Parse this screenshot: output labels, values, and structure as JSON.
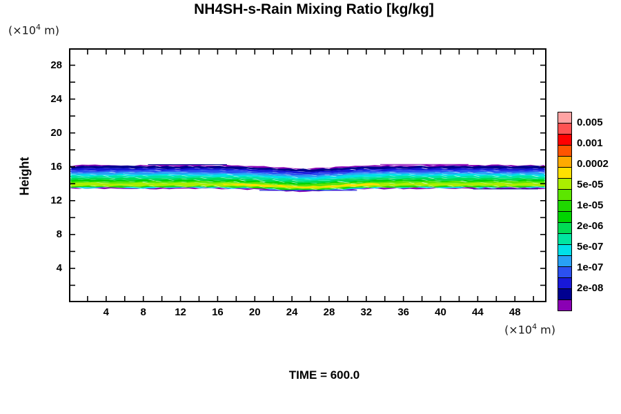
{
  "title": "NH4SH-s-Rain Mixing Ratio [kg/kg]",
  "y_axis_title": "Height",
  "time_label": "TIME = 600.0",
  "y_unit": {
    "pre": "(×10",
    "sup": "4",
    "post": " m)"
  },
  "x_unit": {
    "pre": "(×10",
    "sup": "4",
    "post": " m)"
  },
  "chart_data": {
    "type": "filled_contour",
    "title": "NH4SH-s-Rain Mixing Ratio [kg/kg]",
    "xlabel": "(x10^4 m)",
    "ylabel": "Height (x10^4 m)",
    "x_range": [
      0,
      51.4
    ],
    "y_range": [
      0,
      30
    ],
    "x_ticks_step": 2,
    "y_ticks_step": 2,
    "x_tick_labels": [
      4,
      8,
      12,
      16,
      20,
      24,
      28,
      32,
      36,
      40,
      44,
      48
    ],
    "y_tick_labels": [
      4,
      8,
      12,
      16,
      20,
      24,
      28
    ],
    "time": 600.0,
    "colorbar": {
      "labels": [
        "0.005",
        "0.001",
        "0.0002",
        "5e-05",
        "1e-05",
        "2e-06",
        "5e-07",
        "1e-07",
        "2e-08"
      ],
      "colors": [
        "#FFA3A3",
        "#FF5252",
        "#FF0000",
        "#FF5500",
        "#FFAA00",
        "#FFE000",
        "#AAEE00",
        "#5CE600",
        "#1FD800",
        "#00D400",
        "#00DC55",
        "#00E5A0",
        "#00E0E8",
        "#28A0F5",
        "#2B50F0",
        "#1818D8",
        "#000090",
        "#8A00B4"
      ]
    },
    "band": {
      "description": "Horizontal rain-mixing-ratio band between heights ~13.4 and ~16.2 (x10^4 m), dipping slightly between x=19 and x=32",
      "dip": {
        "center": 25.5,
        "sigma": 5.0,
        "depth": 0.35
      },
      "layers": [
        {
          "color": "#8A00B4",
          "top": 16.2,
          "bottom": 16.07
        },
        {
          "color": "#000090",
          "top": 16.07,
          "bottom": 15.8
        },
        {
          "color": "#1818D8",
          "top": 15.8,
          "bottom": 15.56
        },
        {
          "color": "#2B50F0",
          "top": 15.56,
          "bottom": 15.34
        },
        {
          "color": "#28A0F5",
          "top": 15.34,
          "bottom": 15.12
        },
        {
          "color": "#00E0E8",
          "top": 15.12,
          "bottom": 14.9
        },
        {
          "color": "#00E5A0",
          "top": 14.9,
          "bottom": 14.66
        },
        {
          "color": "#00DC55",
          "top": 14.66,
          "bottom": 14.44
        },
        {
          "color": "#00D400",
          "top": 14.44,
          "bottom": 14.26
        },
        {
          "color": "#5CE600",
          "top": 14.26,
          "bottom": 14.08
        },
        {
          "color": "#AAEE00",
          "top": 14.08,
          "bottom": 13.72
        },
        {
          "color": "#1FD800",
          "top": 13.72,
          "bottom": 13.58
        },
        {
          "color": "#00E0E8",
          "top": 13.58,
          "bottom": 13.5
        },
        {
          "color": "#8A00B4",
          "top": 13.5,
          "bottom": 13.4
        }
      ],
      "yellow_strip": {
        "color": "#FFE000",
        "x1": 16.5,
        "x2": 33.5,
        "top": 14.06,
        "bottom": 13.86
      },
      "fragments": [
        {
          "color": "#1818D8",
          "x1": 20.5,
          "x2": 31.0,
          "top": 13.26,
          "bottom": 13.17
        },
        {
          "color": "#000090",
          "x1": 43.5,
          "x2": 50.5,
          "top": 13.42,
          "bottom": 13.34
        },
        {
          "color": "#000090",
          "x1": 8.5,
          "x2": 17.0,
          "top": 16.3,
          "bottom": 16.22
        },
        {
          "color": "#8A00B4",
          "x1": 33.5,
          "x2": 43.0,
          "top": 16.32,
          "bottom": 16.24
        }
      ]
    }
  }
}
